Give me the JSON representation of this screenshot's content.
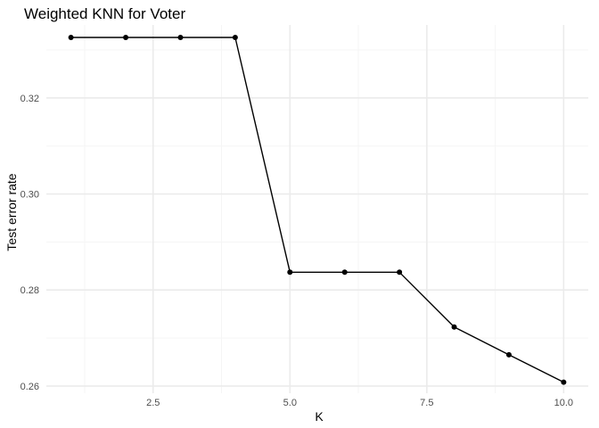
{
  "chart_data": {
    "type": "line",
    "title": "Weighted KNN for Voter",
    "xlabel": "K",
    "ylabel": "Test error rate",
    "xlim": [
      0.55,
      10.45
    ],
    "ylim": [
      0.2585,
      0.3352
    ],
    "x_ticks": [
      2.5,
      5.0,
      7.5,
      10.0
    ],
    "x_tick_labels": [
      "2.5",
      "5.0",
      "7.5",
      "10.0"
    ],
    "x_minor_ticks": [
      1.25,
      3.75,
      6.25,
      8.75
    ],
    "y_ticks": [
      0.26,
      0.28,
      0.3,
      0.32
    ],
    "y_tick_labels": [
      "0.26",
      "0.28",
      "0.30",
      "0.32"
    ],
    "y_minor_ticks": [
      0.27,
      0.29,
      0.31,
      0.33
    ],
    "grid": true,
    "legend": "none",
    "series": [
      {
        "x": [
          1,
          2,
          3,
          4,
          5,
          6,
          7,
          8,
          9,
          10
        ],
        "y": [
          0.3326,
          0.3326,
          0.3326,
          0.3326,
          0.2837,
          0.2837,
          0.2837,
          0.2723,
          0.2665,
          0.2608
        ],
        "color": "#000000"
      }
    ],
    "colors": {
      "background": "#ffffff",
      "major_grid": "#ebebeb",
      "minor_grid": "#f5f5f5",
      "tick_label": "#4d4d4d",
      "text": "#000000"
    }
  }
}
